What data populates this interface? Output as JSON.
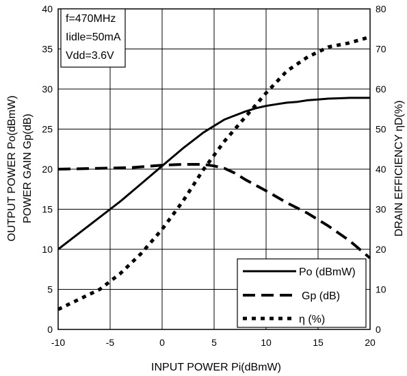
{
  "chart_data": {
    "type": "line",
    "xlabel": "INPUT POWER Pi(dBmW)",
    "ylabel_left_line1": "OUTPUT POWER Po(dBmW)",
    "ylabel_left_line2": "POWER GAIN Gp(dB)",
    "ylabel_right": "DRAIN EFFICIENCY ηD(%)",
    "xlim": [
      -10,
      20
    ],
    "ylim_left": [
      0,
      40
    ],
    "ylim_right": [
      0,
      80
    ],
    "x_ticks": [
      -10,
      -5,
      0,
      5,
      10,
      15,
      20
    ],
    "y_ticks_left": [
      0,
      5,
      10,
      15,
      20,
      25,
      30,
      35,
      40
    ],
    "y_ticks_right": [
      0,
      10,
      20,
      30,
      40,
      50,
      60,
      70,
      80
    ],
    "grid": true,
    "conditions": [
      "f=470MHz",
      "Iidle=50mA",
      "Vdd=3.6V"
    ],
    "legend_position": "bottom-right",
    "series": [
      {
        "name": "Po (dBmW)",
        "axis": "left",
        "style": "solid",
        "x": [
          -10,
          -8,
          -6,
          -4,
          -2,
          0,
          2,
          4,
          5,
          6,
          7,
          8,
          9,
          10,
          11,
          12,
          13,
          14,
          15,
          16,
          17,
          18,
          19,
          20
        ],
        "y": [
          10,
          12,
          14,
          16,
          18.2,
          20.4,
          22.6,
          24.6,
          25.4,
          26.2,
          26.7,
          27.2,
          27.6,
          27.9,
          28.1,
          28.3,
          28.4,
          28.6,
          28.7,
          28.8,
          28.85,
          28.9,
          28.9,
          28.9
        ]
      },
      {
        "name": "Gp (dB)",
        "axis": "left",
        "style": "dashed",
        "x": [
          -10,
          -6,
          -3,
          0,
          2,
          4,
          5,
          6,
          7,
          8,
          10,
          12,
          14,
          16,
          18,
          20
        ],
        "y": [
          20,
          20.1,
          20.2,
          20.5,
          20.6,
          20.6,
          20.4,
          20.1,
          19.5,
          18.7,
          17.3,
          15.8,
          14.5,
          12.9,
          11.1,
          8.9
        ]
      },
      {
        "name": "η (%)",
        "axis": "right",
        "style": "dotted",
        "x": [
          -10,
          -8,
          -6,
          -4,
          -2,
          0,
          2,
          4,
          6,
          8,
          10,
          12,
          14,
          16,
          18,
          20
        ],
        "y": [
          5,
          7.5,
          10,
          14,
          19,
          25,
          32,
          40,
          47,
          53,
          59,
          64.5,
          68,
          70.5,
          71.5,
          73
        ]
      }
    ]
  }
}
